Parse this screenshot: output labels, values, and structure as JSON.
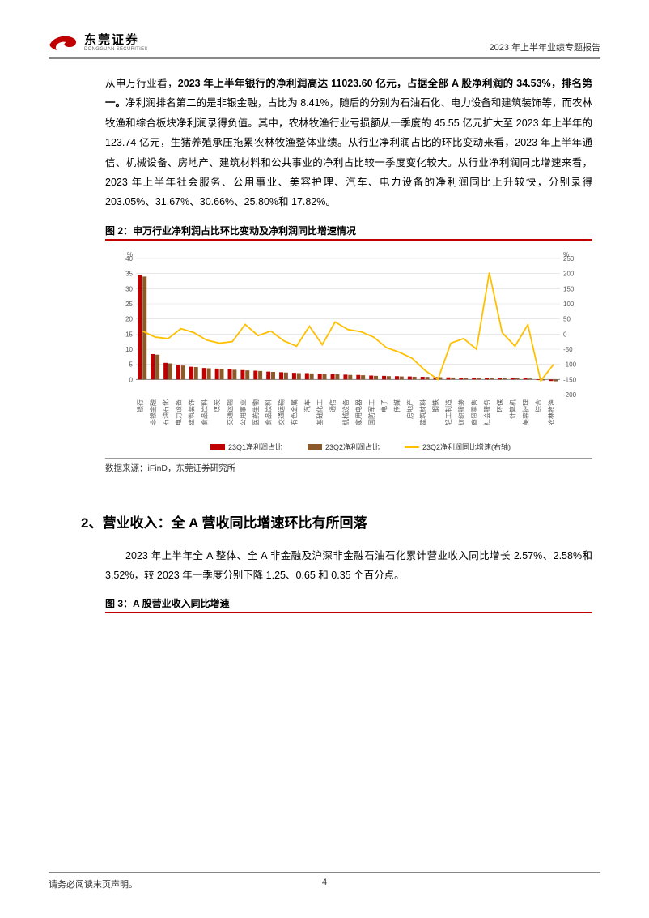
{
  "header": {
    "logo_cn": "东莞证券",
    "logo_en": "DONGGUAN SECURITIES",
    "report_title": "2023 年上半年业绩专题报告"
  },
  "para1_pre": "从申万行业看，",
  "para1_bold": "2023 年上半年银行的净利润高达 11023.60 亿元，占据全部 A 股净利润的 34.53%，排名第一。",
  "para1_rest": "净利润排名第二的是非银金融，占比为 8.41%，随后的分别为石油石化、电力设备和建筑装饰等，而农林牧渔和综合板块净利润录得负值。其中，农林牧渔行业亏损额从一季度的 45.55 亿元扩大至 2023 年上半年的 123.74 亿元，生猪养殖承压拖累农林牧渔整体业绩。从行业净利润占比的环比变动来看，2023 年上半年通信、机械设备、房地产、建筑材料和公共事业的净利占比较一季度变化较大。从行业净利润同比增速来看，2023 年上半年社会服务、公用事业、美容护理、汽车、电力设备的净利润同比上升较快，分别录得 203.05%、31.67%、30.66%、25.80%和 17.82%。",
  "fig2_title": "图 2：申万行业净利润占比环比变动及净利润同比增速情况",
  "fig2_source": "数据来源：iFinD，东莞证券研究所",
  "fig2": {
    "type": "bar+line",
    "categories": [
      "银行",
      "非银金融",
      "石油石化",
      "电力设备",
      "建筑装饰",
      "食品饮料",
      "煤炭",
      "交通运输",
      "公用事业",
      "医药生物",
      "食品饮料",
      "交通运输",
      "有色金属",
      "汽车",
      "基础化工",
      "通信",
      "机械设备",
      "家用电器",
      "国防军工",
      "电子",
      "传媒",
      "房地产",
      "建筑材料",
      "钢铁",
      "轻工制造",
      "纺织服装",
      "商贸零售",
      "社会服务",
      "环保",
      "计算机",
      "美容护理",
      "综合",
      "农林牧渔"
    ],
    "q1_values": [
      34.5,
      8.4,
      5.5,
      4.8,
      4.2,
      3.8,
      3.6,
      3.3,
      3.1,
      2.9,
      2.6,
      2.4,
      2.2,
      2.1,
      1.9,
      1.8,
      1.6,
      1.5,
      1.3,
      1.2,
      1.1,
      1.0,
      0.9,
      0.8,
      0.7,
      0.6,
      0.55,
      0.5,
      0.45,
      0.4,
      0.35,
      -0.2,
      -0.5
    ],
    "q2_values": [
      34.0,
      8.2,
      5.3,
      4.6,
      4.1,
      3.7,
      3.5,
      3.2,
      3.0,
      2.8,
      2.5,
      2.3,
      2.1,
      2.0,
      1.8,
      1.7,
      1.5,
      1.4,
      1.2,
      1.1,
      1.0,
      0.9,
      0.85,
      0.75,
      0.65,
      0.55,
      0.5,
      0.45,
      0.4,
      0.35,
      0.3,
      -0.3,
      -0.6
    ],
    "growth_values": [
      10,
      -10,
      -15,
      18,
      5,
      -20,
      -30,
      -25,
      32,
      -5,
      10,
      -22,
      -40,
      26,
      -35,
      40,
      15,
      8,
      -10,
      -45,
      -60,
      -80,
      -120,
      -150,
      -30,
      -15,
      -50,
      203,
      5,
      -40,
      31,
      -155,
      -100
    ],
    "left_ylim": [
      -5,
      40
    ],
    "left_ticks": [
      0,
      5,
      10,
      15,
      20,
      25,
      30,
      35,
      40
    ],
    "right_ylim": [
      -200,
      250
    ],
    "right_ticks": [
      -200,
      -150,
      -100,
      -50,
      0,
      50,
      100,
      150,
      200,
      250
    ],
    "colors": {
      "q1_bar": "#c00000",
      "q2_bar": "#8b5a2b",
      "growth_line": "#ffc000",
      "grid": "#d9d9d9",
      "axis_text": "#595959",
      "bg": "#ffffff"
    },
    "left_unit": "%",
    "right_unit": "%",
    "legend": {
      "q1": "23Q1净利润占比",
      "q2": "23Q2净利润占比",
      "growth": "23Q2净利润同比增速(右轴)"
    },
    "fontsize_axis": 8,
    "fontsize_legend": 9,
    "bar_width": 0.35
  },
  "section2_h": "2、营业收入：全 A 营收同比增速环比有所回落",
  "section2_p": "2023 年上半年全 A 整体、全 A 非金融及沪深非金融石油石化累计营业收入同比增长 2.57%、2.58%和 3.52%，较 2023 年一季度分别下降 1.25、0.65 和 0.35 个百分点。",
  "fig3_title": "图 3：A 股营业收入同比增速",
  "footer": {
    "disclaimer": "请务必阅读末页声明。",
    "page": "4"
  }
}
